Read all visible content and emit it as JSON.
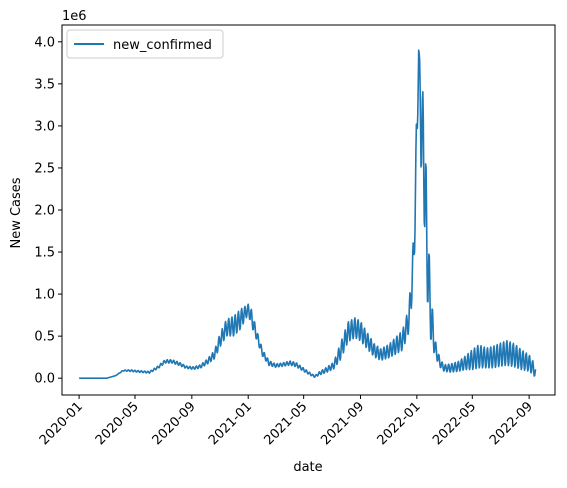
{
  "chart_data": {
    "type": "line",
    "xlabel": "date",
    "ylabel": "New Cases",
    "y_offset_label": "1e6",
    "y_scale": 1000000,
    "ylim": [
      -0.2,
      4.2
    ],
    "xlim": [
      "2019-11-25",
      "2022-10-27"
    ],
    "x_ticks": [
      "2020-01-01",
      "2020-05-01",
      "2020-09-01",
      "2021-01-01",
      "2021-05-01",
      "2021-09-01",
      "2022-01-01",
      "2022-05-01",
      "2022-09-01"
    ],
    "x_tick_labels": [
      "2020-01",
      "2020-05",
      "2020-09",
      "2021-01",
      "2021-05",
      "2021-09",
      "2022-01",
      "2022-05",
      "2022-09"
    ],
    "y_ticks": [
      0,
      0.5,
      1.0,
      1.5,
      2.0,
      2.5,
      3.0,
      3.5,
      4.0
    ],
    "y_tick_labels": [
      "0.0",
      "0.5",
      "1.0",
      "1.5",
      "2.0",
      "2.5",
      "3.0",
      "3.5",
      "4.0"
    ],
    "legend_position": "top-left",
    "grid": false,
    "colors": {
      "line": "#1f77b4"
    },
    "series": [
      {
        "name": "new_confirmed",
        "x": [
          "2020-01-01",
          "2020-02-01",
          "2020-03-01",
          "2020-03-20",
          "2020-04-05",
          "2020-04-20",
          "2020-05-10",
          "2020-06-01",
          "2020-06-20",
          "2020-07-05",
          "2020-07-20",
          "2020-08-05",
          "2020-08-20",
          "2020-09-05",
          "2020-09-20",
          "2020-10-05",
          "2020-10-20",
          "2020-11-01",
          "2020-11-15",
          "2020-12-01",
          "2020-12-15",
          "2021-01-01",
          "2021-01-08",
          "2021-01-20",
          "2021-02-01",
          "2021-02-15",
          "2021-03-01",
          "2021-03-15",
          "2021-04-01",
          "2021-04-15",
          "2021-05-01",
          "2021-05-15",
          "2021-05-25",
          "2021-06-05",
          "2021-06-20",
          "2021-07-05",
          "2021-07-20",
          "2021-08-05",
          "2021-08-20",
          "2021-09-01",
          "2021-09-15",
          "2021-10-01",
          "2021-10-15",
          "2021-11-01",
          "2021-11-15",
          "2021-12-01",
          "2021-12-15",
          "2021-12-25",
          "2022-01-01",
          "2022-01-05",
          "2022-01-10",
          "2022-01-15",
          "2022-01-20",
          "2022-01-25",
          "2022-02-01",
          "2022-02-10",
          "2022-02-20",
          "2022-03-01",
          "2022-03-15",
          "2022-04-01",
          "2022-04-15",
          "2022-05-01",
          "2022-05-15",
          "2022-06-01",
          "2022-06-15",
          "2022-07-01",
          "2022-07-15",
          "2022-08-01",
          "2022-08-15",
          "2022-09-01",
          "2022-09-10",
          "2022-09-15"
        ],
        "values": [
          0,
          0,
          0,
          0.03,
          0.09,
          0.09,
          0.08,
          0.07,
          0.13,
          0.2,
          0.2,
          0.17,
          0.13,
          0.12,
          0.14,
          0.2,
          0.28,
          0.45,
          0.6,
          0.62,
          0.7,
          0.82,
          0.72,
          0.5,
          0.3,
          0.18,
          0.15,
          0.16,
          0.18,
          0.16,
          0.1,
          0.05,
          0.02,
          0.06,
          0.1,
          0.15,
          0.32,
          0.55,
          0.6,
          0.56,
          0.45,
          0.33,
          0.28,
          0.32,
          0.38,
          0.45,
          0.7,
          1.4,
          2.85,
          3.9,
          3.0,
          2.8,
          2.0,
          1.3,
          0.7,
          0.35,
          0.18,
          0.12,
          0.12,
          0.14,
          0.18,
          0.22,
          0.26,
          0.24,
          0.25,
          0.28,
          0.3,
          0.27,
          0.22,
          0.18,
          0.12,
          0.06
        ],
        "amplitude": [
          0,
          0,
          0,
          0,
          0.005,
          0.01,
          0.01,
          0.01,
          0.015,
          0.02,
          0.02,
          0.02,
          0.015,
          0.015,
          0.02,
          0.03,
          0.05,
          0.08,
          0.1,
          0.12,
          0.12,
          0.06,
          0.1,
          0.06,
          0.04,
          0.03,
          0.02,
          0.02,
          0.025,
          0.025,
          0.02,
          0.015,
          0.01,
          0.02,
          0.03,
          0.04,
          0.1,
          0.12,
          0.12,
          0.12,
          0.1,
          0.08,
          0.07,
          0.08,
          0.1,
          0.12,
          0.15,
          0.3,
          0.4,
          0.1,
          0.5,
          0.6,
          0.7,
          0.5,
          0.3,
          0.1,
          0.05,
          0.04,
          0.05,
          0.06,
          0.08,
          0.12,
          0.14,
          0.12,
          0.13,
          0.14,
          0.15,
          0.14,
          0.12,
          0.1,
          0.08,
          0.06
        ]
      }
    ]
  }
}
